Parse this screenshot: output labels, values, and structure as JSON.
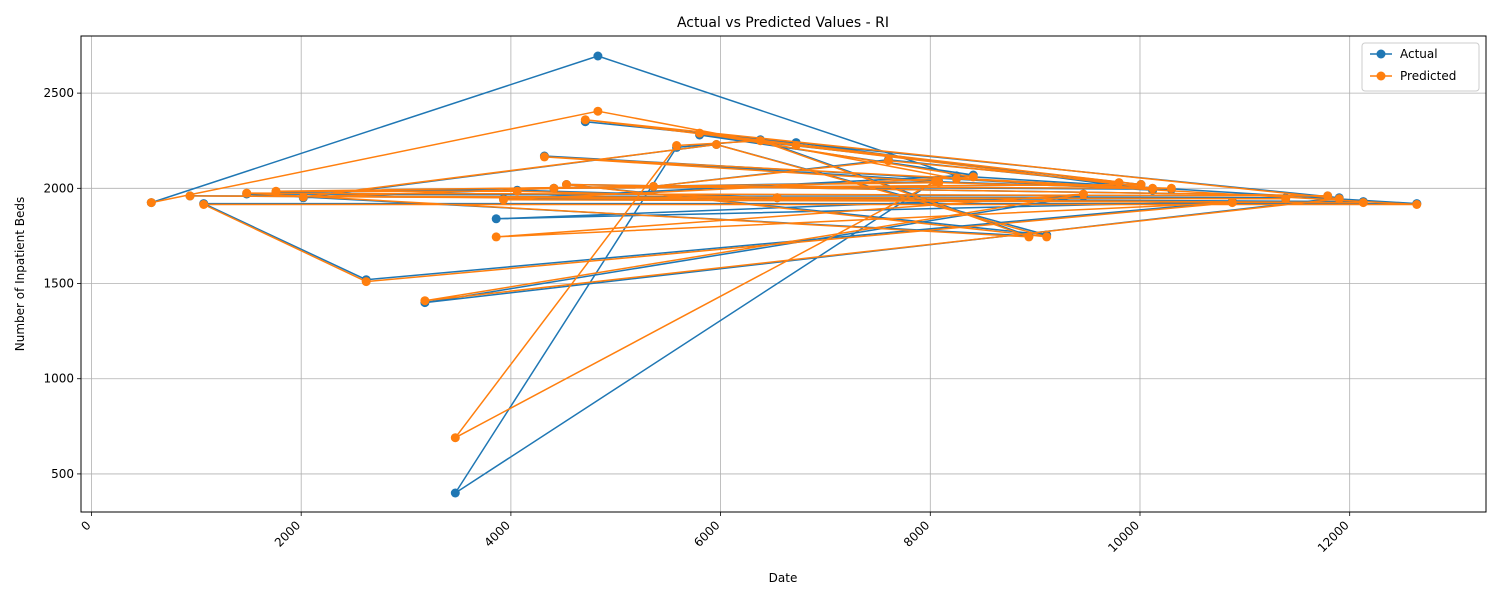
{
  "chart_data": {
    "type": "line",
    "title": "Actual vs Predicted Values - RI",
    "xlabel": "Date",
    "ylabel": "Number of Inpatient Beds",
    "xlim": [
      -100,
      13300
    ],
    "ylim": [
      300,
      2800
    ],
    "xticks": [
      0,
      2000,
      4000,
      6000,
      8000,
      10000,
      12000
    ],
    "xtick_labels": [
      "0",
      "2000",
      "4000",
      "6000",
      "8000",
      "10000",
      "12000"
    ],
    "yticks": [
      500,
      1000,
      1500,
      2000,
      2500
    ],
    "ytick_labels": [
      "500",
      "1000",
      "1500",
      "2000",
      "2500"
    ],
    "grid": true,
    "legend_position": "top-right",
    "series": [
      {
        "name": "Actual",
        "color": "#1f77b4",
        "points": [
          [
            570,
            1925
          ],
          [
            4830,
            2695
          ],
          [
            8250,
            2065
          ],
          [
            12640,
            1920
          ],
          [
            1070,
            1920
          ],
          [
            2620,
            1520
          ],
          [
            10880,
            1930
          ],
          [
            3860,
            1840
          ],
          [
            9460,
            1960
          ],
          [
            3180,
            1400
          ],
          [
            11900,
            1950
          ],
          [
            4710,
            2350
          ],
          [
            6720,
            2240
          ],
          [
            10120,
            1990
          ],
          [
            4320,
            2170
          ],
          [
            8050,
            2040
          ],
          [
            3470,
            400
          ],
          [
            5580,
            2215
          ],
          [
            6380,
            2255
          ],
          [
            8940,
            1750
          ],
          [
            1480,
            1970
          ],
          [
            11790,
            1960
          ],
          [
            4530,
            2020
          ],
          [
            9110,
            1755
          ],
          [
            5960,
            2230
          ],
          [
            2020,
            1950
          ],
          [
            4410,
            2000
          ],
          [
            10010,
            2020
          ],
          [
            5800,
            2280
          ],
          [
            8410,
            2070
          ],
          [
            3930,
            1945
          ],
          [
            12130,
            1930
          ],
          [
            940,
            1960
          ],
          [
            11390,
            1950
          ],
          [
            6540,
            1950
          ],
          [
            4060,
            1990
          ],
          [
            1760,
            1980
          ],
          [
            8080,
            2035
          ],
          [
            10300,
            1995
          ],
          [
            5360,
            2010
          ],
          [
            7600,
            2150
          ],
          [
            9800,
            2025
          ]
        ]
      },
      {
        "name": "Predicted",
        "color": "#ff7f0e",
        "points": [
          [
            570,
            1925
          ],
          [
            4830,
            2405
          ],
          [
            8250,
            2050
          ],
          [
            12640,
            1915
          ],
          [
            1070,
            1915
          ],
          [
            2620,
            1510
          ],
          [
            10880,
            1925
          ],
          [
            3860,
            1745
          ],
          [
            9460,
            1970
          ],
          [
            3180,
            1410
          ],
          [
            11900,
            1945
          ],
          [
            4710,
            2360
          ],
          [
            6720,
            2225
          ],
          [
            10120,
            2000
          ],
          [
            4320,
            2165
          ],
          [
            8050,
            2035
          ],
          [
            3470,
            690
          ],
          [
            5580,
            2225
          ],
          [
            6380,
            2250
          ],
          [
            8940,
            1745
          ],
          [
            1480,
            1975
          ],
          [
            11790,
            1960
          ],
          [
            4530,
            2020
          ],
          [
            9110,
            1745
          ],
          [
            5960,
            2230
          ],
          [
            2020,
            1955
          ],
          [
            4410,
            2000
          ],
          [
            10010,
            2020
          ],
          [
            5800,
            2290
          ],
          [
            8410,
            2060
          ],
          [
            3930,
            1940
          ],
          [
            12130,
            1925
          ],
          [
            940,
            1960
          ],
          [
            11390,
            1945
          ],
          [
            6540,
            1950
          ],
          [
            4060,
            1985
          ],
          [
            1760,
            1985
          ],
          [
            8080,
            2030
          ],
          [
            10300,
            2000
          ],
          [
            5360,
            2010
          ],
          [
            7600,
            2145
          ],
          [
            9800,
            2030
          ]
        ]
      }
    ]
  }
}
